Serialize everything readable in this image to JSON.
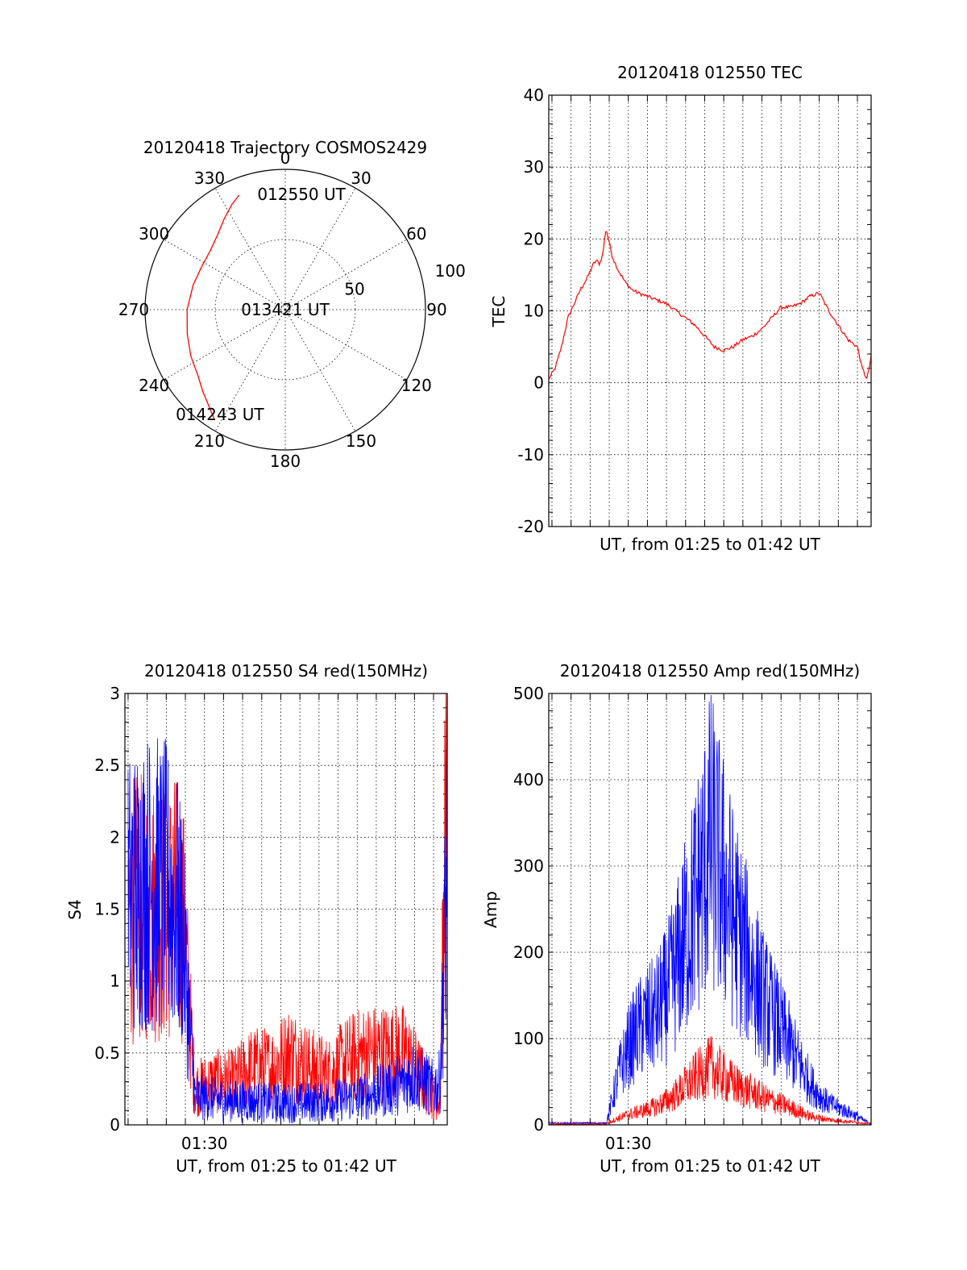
{
  "colors": {
    "red": "#ff0000",
    "blue": "#0000ff",
    "axis": "#000000",
    "background": "#ffffff"
  },
  "chart_data": [
    {
      "type": "polar",
      "title": "20120418 Trajectory COSMOS2429",
      "azimuth_labels": [
        "0",
        "30",
        "60",
        "90",
        "120",
        "150",
        "180",
        "210",
        "240",
        "270",
        "300",
        "330"
      ],
      "azimuth_values": [
        0,
        30,
        60,
        90,
        120,
        150,
        180,
        210,
        240,
        270,
        300,
        330
      ],
      "radial_labels": [
        "50",
        "100"
      ],
      "radial_values": [
        50,
        100
      ],
      "rlim": [
        0,
        100
      ],
      "grid": true,
      "trajectory": {
        "azimuth_deg": [
          338,
          333,
          326,
          318,
          308,
          297,
          285,
          270,
          256,
          244,
          233,
          225,
          218,
          213
        ],
        "radius": [
          88,
          84,
          78,
          72,
          68,
          67,
          68,
          70,
          72,
          75,
          78,
          83,
          88,
          93
        ]
      },
      "annotations": [
        {
          "text": "012550 UT",
          "azimuth_deg": 8,
          "radius": 83
        },
        {
          "text": "013421 UT",
          "azimuth_deg": 0,
          "radius": 0
        },
        {
          "text": "014243 UT",
          "azimuth_deg": 212,
          "radius": 88
        }
      ]
    },
    {
      "type": "line",
      "title": "20120418 012550 TEC",
      "xlabel": "UT, from 01:25 to 01:42 UT",
      "ylabel": "TEC",
      "xlim": [
        "01:25:50",
        "01:42:43"
      ],
      "ylim": [
        -20,
        40
      ],
      "yticks": [
        "-20",
        "-10",
        "0",
        "10",
        "20",
        "30",
        "40"
      ],
      "grid": true,
      "series": [
        {
          "color": "red",
          "x": [
            "01:25:50",
            "01:26:10",
            "01:26:30",
            "01:26:50",
            "01:27:10",
            "01:27:30",
            "01:27:50",
            "01:28:00",
            "01:28:10",
            "01:28:20",
            "01:28:30",
            "01:28:40",
            "01:28:50",
            "01:29:10",
            "01:29:30",
            "01:29:50",
            "01:30:10",
            "01:30:30",
            "01:31:00",
            "01:31:30",
            "01:32:00",
            "01:32:30",
            "01:33:00",
            "01:33:30",
            "01:34:00",
            "01:34:30",
            "01:35:00",
            "01:35:30",
            "01:36:00",
            "01:36:30",
            "01:37:00",
            "01:37:30",
            "01:38:00",
            "01:38:30",
            "01:39:00",
            "01:39:30",
            "01:40:00",
            "01:40:30",
            "01:41:00",
            "01:41:30",
            "01:42:00",
            "01:42:15",
            "01:42:30",
            "01:42:43"
          ],
          "values": [
            0.5,
            2,
            5,
            9,
            11,
            13,
            14.5,
            15.5,
            16.5,
            17,
            16.5,
            18,
            21.5,
            17.5,
            15.5,
            14,
            13,
            12.5,
            12,
            11.5,
            11,
            10,
            9,
            8,
            6.5,
            5,
            4.5,
            5,
            6,
            6.5,
            7.5,
            9,
            10.5,
            10.5,
            11,
            12,
            12.5,
            10,
            8,
            6,
            5,
            2,
            0.5,
            3.5
          ]
        }
      ]
    },
    {
      "type": "line",
      "title": "20120418 012550 S4 red(150MHz)",
      "xlabel": "UT, from 01:25 to 01:42 UT",
      "ylabel": "S4",
      "xlim": [
        "01:25:50",
        "01:42:43"
      ],
      "ylim": [
        0,
        3
      ],
      "yticks": [
        "0",
        "0.5",
        "1",
        "1.5",
        "2",
        "2.5",
        "3"
      ],
      "xtick_labels": [
        "01:30"
      ],
      "grid": true,
      "series": [
        {
          "color": "red",
          "x": [
            "01:26:00",
            "01:27:00",
            "01:28:00",
            "01:28:50",
            "01:29:30",
            "01:30:30",
            "01:31:30",
            "01:32:30",
            "01:33:30",
            "01:34:30",
            "01:35:30",
            "01:36:30",
            "01:37:30",
            "01:38:30",
            "01:39:30",
            "01:40:30",
            "01:41:00",
            "01:41:30",
            "01:42:00",
            "01:42:20",
            "01:42:43"
          ],
          "values": [
            1.5,
            1.5,
            1.5,
            1.5,
            0.25,
            0.3,
            0.3,
            0.4,
            0.4,
            0.5,
            0.4,
            0.35,
            0.45,
            0.5,
            0.5,
            0.5,
            0.4,
            0.3,
            0.2,
            0.15,
            2.8
          ]
        },
        {
          "color": "blue",
          "x": [
            "01:26:00",
            "01:27:00",
            "01:28:00",
            "01:28:50",
            "01:29:30",
            "01:30:30",
            "01:31:30",
            "01:32:30",
            "01:33:30",
            "01:34:30",
            "01:35:30",
            "01:36:30",
            "01:37:30",
            "01:38:30",
            "01:39:30",
            "01:40:30",
            "01:41:00",
            "01:41:30",
            "01:42:00",
            "01:42:20",
            "01:42:43"
          ],
          "values": [
            1.6,
            1.7,
            1.65,
            1.4,
            0.2,
            0.18,
            0.17,
            0.16,
            0.15,
            0.15,
            0.16,
            0.17,
            0.18,
            0.2,
            0.25,
            0.3,
            0.35,
            0.3,
            0.25,
            0.3,
            1.8
          ]
        }
      ]
    },
    {
      "type": "line",
      "title": "20120418 012550 Amp red(150MHz)",
      "xlabel": "UT, from 01:25 to 01:42 UT",
      "ylabel": "Amp",
      "xlim": [
        "01:25:50",
        "01:42:43"
      ],
      "ylim": [
        0,
        500
      ],
      "yticks": [
        "0",
        "100",
        "200",
        "300",
        "400",
        "500"
      ],
      "xtick_labels": [
        "01:30"
      ],
      "grid": true,
      "series": [
        {
          "color": "blue",
          "x": [
            "01:25:50",
            "01:28:50",
            "01:29:00",
            "01:29:30",
            "01:30:00",
            "01:30:30",
            "01:31:00",
            "01:31:30",
            "01:32:00",
            "01:32:30",
            "01:33:00",
            "01:33:30",
            "01:34:00",
            "01:34:20",
            "01:34:40",
            "01:35:00",
            "01:35:30",
            "01:36:00",
            "01:36:30",
            "01:37:00",
            "01:37:30",
            "01:38:00",
            "01:38:30",
            "01:39:00",
            "01:39:30",
            "01:40:00",
            "01:40:30",
            "01:41:00",
            "01:41:30",
            "01:42:00",
            "01:42:20",
            "01:42:43"
          ],
          "values": [
            2,
            2,
            15,
            60,
            90,
            110,
            120,
            130,
            150,
            180,
            220,
            260,
            300,
            330,
            300,
            280,
            240,
            210,
            180,
            150,
            130,
            110,
            90,
            70,
            50,
            35,
            25,
            20,
            15,
            10,
            5,
            2
          ]
        },
        {
          "color": "red",
          "x": [
            "01:25:50",
            "01:28:50",
            "01:29:00",
            "01:29:30",
            "01:30:00",
            "01:30:30",
            "01:31:00",
            "01:31:30",
            "01:32:00",
            "01:32:30",
            "01:33:00",
            "01:33:30",
            "01:34:00",
            "01:34:20",
            "01:34:40",
            "01:35:00",
            "01:35:30",
            "01:36:00",
            "01:36:30",
            "01:37:00",
            "01:37:30",
            "01:38:00",
            "01:38:30",
            "01:39:00",
            "01:39:30",
            "01:40:00",
            "01:40:30",
            "01:41:00",
            "01:41:30",
            "01:42:00",
            "01:42:20",
            "01:42:43"
          ],
          "values": [
            1,
            1,
            3,
            8,
            12,
            15,
            18,
            22,
            28,
            35,
            45,
            55,
            62,
            68,
            62,
            55,
            48,
            42,
            38,
            32,
            28,
            24,
            20,
            15,
            10,
            8,
            6,
            5,
            4,
            3,
            2,
            1
          ]
        }
      ]
    }
  ]
}
